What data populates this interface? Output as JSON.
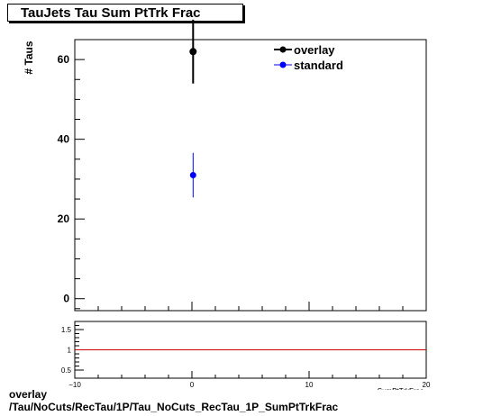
{
  "chart_data": [
    {
      "type": "scatter",
      "title": "TauJets Tau Sum PtTrk Frac",
      "ylabel": "# Taus",
      "xlabel": "SumPtTrkFrac",
      "xlim": [
        -10,
        20
      ],
      "ylim": [
        -3,
        65
      ],
      "x_ticks": [
        -10,
        0,
        10,
        20
      ],
      "y_ticks": [
        0,
        20,
        40,
        60
      ],
      "legend_position": "top-right",
      "series": [
        {
          "name": "overlay",
          "color": "#000000",
          "x": [
            0.1
          ],
          "y": [
            62
          ],
          "yerr": [
            8
          ]
        },
        {
          "name": "standard",
          "color": "#0000ff",
          "x": [
            0.1
          ],
          "y": [
            31
          ],
          "yerr": [
            5.6
          ]
        }
      ]
    },
    {
      "type": "line",
      "xlim": [
        -10,
        20
      ],
      "ylim": [
        0.3,
        1.7
      ],
      "x_ticks": [
        -10,
        0,
        10,
        20
      ],
      "y_ticks": [
        0.5,
        1,
        1.5
      ],
      "reference_line": {
        "y": 1,
        "color": "#cc0000"
      }
    }
  ],
  "footer": {
    "line1": "overlay",
    "line2": "/Tau/NoCuts/RecTau/1P/Tau_NoCuts_RecTau_1P_SumPtTrkFrac"
  }
}
